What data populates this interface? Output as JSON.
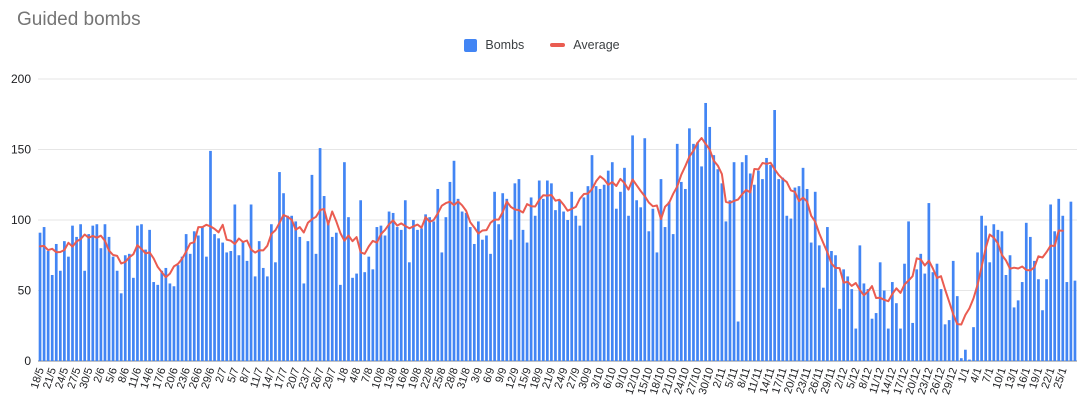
{
  "title": "Guided bombs",
  "legend": {
    "bombs_label": "Bombs",
    "average_label": "Average"
  },
  "colors": {
    "bar": "#4285F4",
    "line": "#EA5C51",
    "grid": "#E6E6E6",
    "axis_line": "#80868B",
    "tick_label": "#202124",
    "title": "#757575"
  },
  "axes": {
    "y_ticks": [
      0,
      50,
      100,
      150,
      200
    ],
    "y_max": 200
  },
  "chart_data": {
    "type": "bar",
    "title": "Guided bombs",
    "xlabel": "",
    "ylabel": "",
    "ylim": [
      0,
      200
    ],
    "y_ticks": [
      0,
      50,
      100,
      150,
      200
    ],
    "grid": "horizontal",
    "legend_position": "top-center",
    "bars_start_label": "18/5",
    "bar_interval_days": 1,
    "label_every_n_bars": 3,
    "n_bars": 256,
    "x_tick_labels": [
      "18/5",
      "21/5",
      "24/5",
      "27/5",
      "30/5",
      "2/6",
      "5/6",
      "8/6",
      "11/6",
      "14/6",
      "17/6",
      "20/6",
      "23/6",
      "26/6",
      "29/6",
      "2/7",
      "5/7",
      "8/7",
      "11/7",
      "14/7",
      "17/7",
      "20/7",
      "23/7",
      "26/7",
      "29/7",
      "1/8",
      "4/8",
      "7/8",
      "10/8",
      "13/8",
      "16/8",
      "19/8",
      "22/8",
      "25/8",
      "28/8",
      "31/8",
      "3/9",
      "6/9",
      "9/9",
      "12/9",
      "15/9",
      "18/9",
      "21/9",
      "24/9",
      "27/9",
      "30/9",
      "3/10",
      "6/10",
      "9/10",
      "12/10",
      "15/10",
      "18/10",
      "21/10",
      "24/10",
      "27/10",
      "30/10",
      "2/11",
      "5/11",
      "8/11",
      "11/11",
      "14/11",
      "17/11",
      "20/11",
      "23/11",
      "26/11",
      "29/11",
      "2/12",
      "5/12",
      "8/12",
      "11/12",
      "14/12",
      "17/12",
      "20/12",
      "23/12",
      "26/12",
      "29/12",
      "1/1",
      "4/1",
      "7/1",
      "10/1",
      "13/1",
      "16/1",
      "19/1",
      "22/1",
      "25/1"
    ],
    "series": [
      {
        "name": "Bombs",
        "type": "bar",
        "color": "#4285F4",
        "values": [
          91,
          95,
          78,
          61,
          83,
          64,
          85,
          74,
          96,
          88,
          97,
          64,
          90,
          96,
          97,
          80,
          97,
          88,
          74,
          64,
          48,
          75,
          76,
          59,
          96,
          97,
          79,
          93,
          56,
          54,
          64,
          66,
          55,
          53,
          68,
          74,
          90,
          76,
          92,
          89,
          95,
          74,
          149,
          90,
          87,
          84,
          77,
          78,
          111,
          75,
          85,
          71,
          111,
          60,
          85,
          66,
          60,
          97,
          70,
          134,
          119,
          103,
          103,
          99,
          88,
          55,
          85,
          132,
          76,
          151,
          117,
          100,
          88,
          91,
          54,
          141,
          102,
          59,
          62,
          114,
          63,
          74,
          65,
          95,
          96,
          89,
          106,
          105,
          95,
          93,
          114,
          70,
          100,
          93,
          94,
          104,
          102,
          99,
          122,
          77,
          102,
          127,
          142,
          115,
          106,
          105,
          95,
          83,
          99,
          86,
          89,
          76,
          120,
          97,
          119,
          115,
          86,
          126,
          129,
          93,
          84,
          116,
          103,
          128,
          115,
          128,
          126,
          107,
          114,
          106,
          100,
          120,
          103,
          96,
          116,
          124,
          146,
          124,
          122,
          125,
          135,
          141,
          108,
          120,
          137,
          103,
          160,
          114,
          109,
          158,
          92,
          108,
          77,
          129,
          95,
          113,
          90,
          154,
          127,
          122,
          165,
          154,
          155,
          138,
          183,
          166,
          146,
          136,
          126,
          99,
          114,
          141,
          28,
          141,
          146,
          133,
          125,
          135,
          129,
          144,
          139,
          178,
          129,
          130,
          103,
          101,
          123,
          124,
          137,
          122,
          84,
          120,
          82,
          52,
          95,
          78,
          75,
          37,
          65,
          60,
          51,
          23,
          82,
          55,
          51,
          30,
          34,
          70,
          50,
          23,
          56,
          41,
          23,
          69,
          99,
          27,
          65,
          76,
          62,
          112,
          63,
          69,
          51,
          26,
          29,
          71,
          46,
          2,
          8,
          1,
          24,
          77,
          103,
          96,
          70,
          97,
          93,
          92,
          61,
          75,
          38,
          43,
          56,
          98,
          88,
          71,
          58,
          36,
          58,
          111,
          92,
          115,
          103,
          56,
          113,
          57
        ]
      },
      {
        "name": "Average",
        "type": "line",
        "color": "#EA5C51",
        "derivation": "7-day centered moving average of Bombs",
        "ends_at_label": "25/1"
      }
    ]
  }
}
